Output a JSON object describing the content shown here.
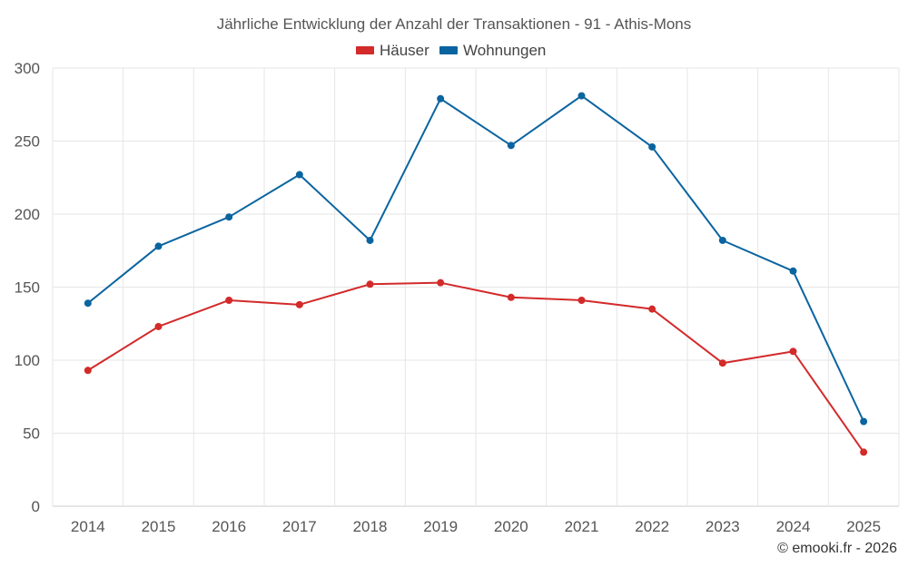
{
  "chart_data": {
    "type": "line",
    "title": "Jährliche Entwicklung der Anzahl der Transaktionen - 91 - Athis-Mons",
    "categories": [
      "2014",
      "2015",
      "2016",
      "2017",
      "2018",
      "2019",
      "2020",
      "2021",
      "2022",
      "2023",
      "2024",
      "2025"
    ],
    "ylim": [
      0,
      300
    ],
    "yticks": [
      "0",
      "50",
      "100",
      "150",
      "200",
      "250",
      "300"
    ],
    "grid": true,
    "legend_position": "top-center",
    "series": [
      {
        "name": "Häuser",
        "color": "#d32a2a",
        "values": [
          93,
          123,
          141,
          138,
          152,
          153,
          143,
          141,
          135,
          98,
          106,
          37
        ]
      },
      {
        "name": "Wohnungen",
        "color": "#0a64a0",
        "values": [
          139,
          178,
          198,
          227,
          182,
          279,
          247,
          281,
          246,
          182,
          161,
          58
        ]
      }
    ]
  },
  "credit": "© emooki.fr - 2026"
}
